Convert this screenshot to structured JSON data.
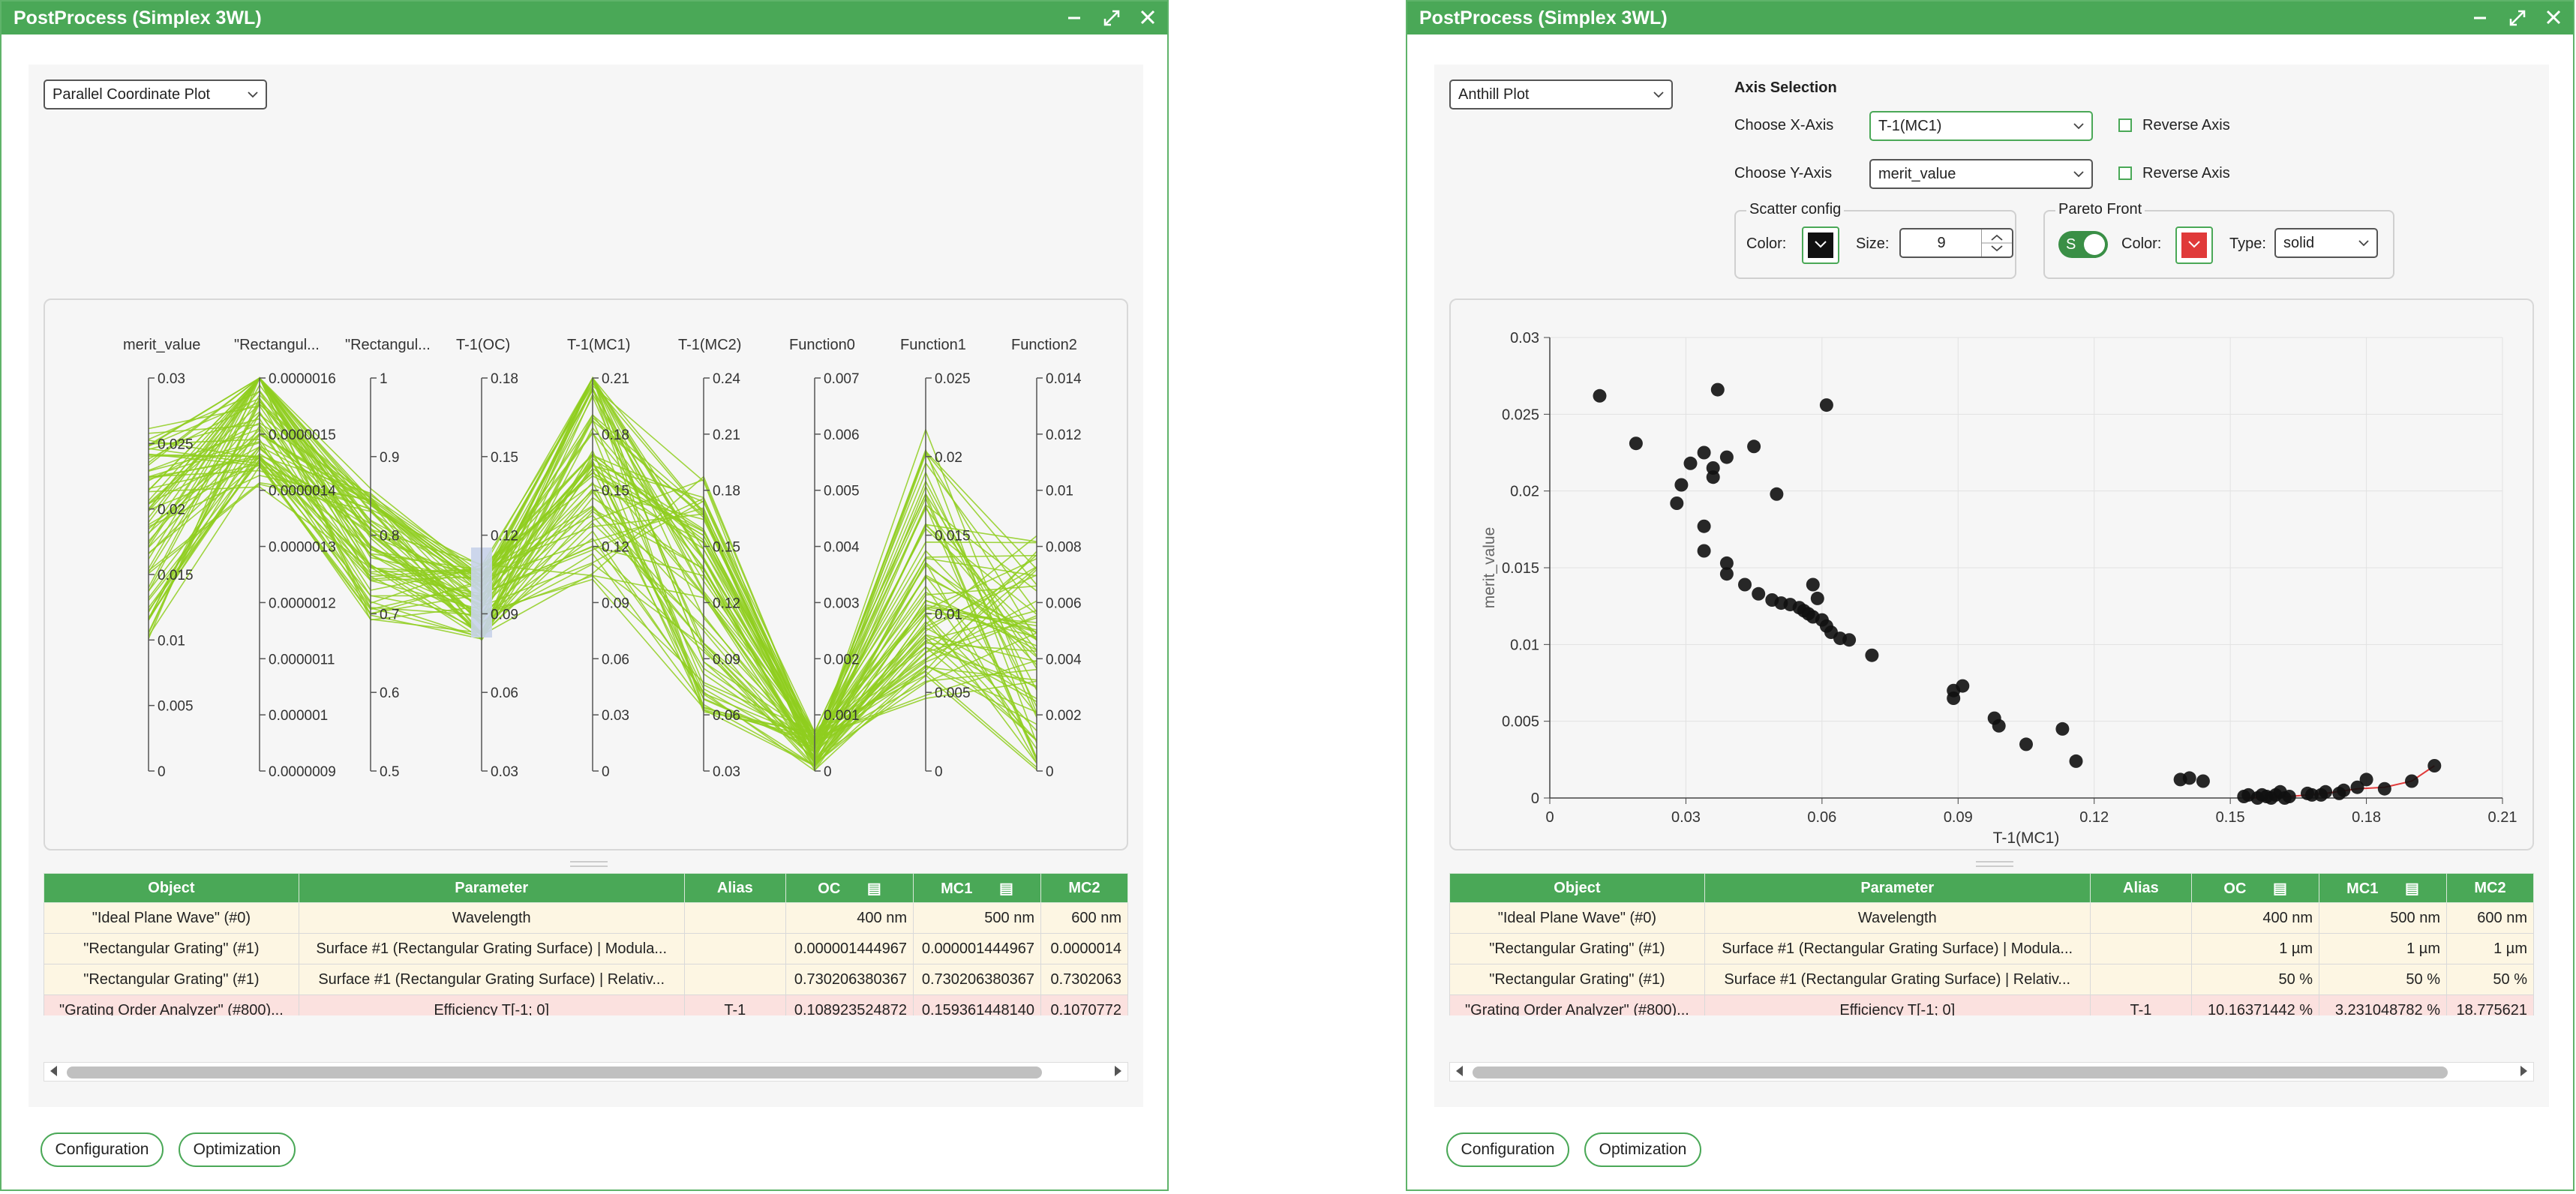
{
  "windows": [
    {
      "title": "PostProcess (Simplex 3WL)",
      "plot_type": "Parallel Coordinate Plot",
      "parallel_axes": [
        {
          "name": "merit_value",
          "ticks": [
            "0.03",
            "0.025",
            "0.02",
            "0.015",
            "0.01",
            "0.005",
            "0"
          ]
        },
        {
          "name": "\"Rectangul...",
          "ticks": [
            "0.0000016",
            "0.0000015",
            "0.0000014",
            "0.0000013",
            "0.0000012",
            "0.0000011",
            "0.000001",
            "0.0000009"
          ]
        },
        {
          "name": "\"Rectangul...",
          "ticks": [
            "1",
            "0.9",
            "0.8",
            "0.7",
            "0.6",
            "0.5"
          ]
        },
        {
          "name": "T-1(OC)",
          "ticks": [
            "0.18",
            "0.15",
            "0.12",
            "0.09",
            "0.06",
            "0.03"
          ]
        },
        {
          "name": "T-1(MC1)",
          "ticks": [
            "0.21",
            "0.18",
            "0.15",
            "0.12",
            "0.09",
            "0.06",
            "0.03",
            "0"
          ]
        },
        {
          "name": "T-1(MC2)",
          "ticks": [
            "0.24",
            "0.21",
            "0.18",
            "0.15",
            "0.12",
            "0.09",
            "0.06",
            "0.03"
          ]
        },
        {
          "name": "Function0",
          "ticks": [
            "0.007",
            "0.006",
            "0.005",
            "0.004",
            "0.003",
            "0.002",
            "0.001",
            "0"
          ]
        },
        {
          "name": "Function1",
          "ticks": [
            "0.025",
            "0.02",
            "0.015",
            "0.01",
            "0.005",
            "0"
          ]
        },
        {
          "name": "Function2",
          "ticks": [
            "0.014",
            "0.012",
            "0.01",
            "0.008",
            "0.006",
            "0.004",
            "0.002",
            "0"
          ]
        }
      ],
      "table": {
        "headers": [
          "Object",
          "Parameter",
          "Alias",
          "OC",
          "MC1",
          "MC2"
        ],
        "rows": [
          [
            "\"Ideal Plane Wave\" (#0)",
            "Wavelength",
            "",
            "400 nm",
            "500 nm",
            "600 nm"
          ],
          [
            "\"Rectangular Grating\" (#1)",
            "Surface #1 (Rectangular Grating Surface) | Modula...",
            "",
            "0.000001444967",
            "0.000001444967",
            "0.0000014"
          ],
          [
            "\"Rectangular Grating\" (#1)",
            "Surface #1 (Rectangular Grating Surface) | Relativ...",
            "",
            "0.730206380367",
            "0.730206380367",
            "0.7302063"
          ],
          [
            "\"Grating Order Analyzer\" (#800)...",
            "Efficiency T[-1; 0]",
            "T-1",
            "0.108923524872",
            "0.159361448140",
            "0.1070772"
          ]
        ]
      },
      "buttons": {
        "configuration": "Configuration",
        "optimization": "Optimization"
      }
    },
    {
      "title": "PostProcess (Simplex 3WL)",
      "plot_type": "Anthill Plot",
      "axis_selection": {
        "heading": "Axis Selection",
        "x_label": "Choose X-Axis",
        "x_value": "T-1(MC1)",
        "y_label": "Choose Y-Axis",
        "y_value": "merit_value",
        "reverse_label": "Reverse Axis"
      },
      "scatter_config": {
        "legend": "Scatter config",
        "color_label": "Color:",
        "size_label": "Size:",
        "size_value": "9",
        "color": "#111111"
      },
      "pareto_front": {
        "legend": "Pareto Front",
        "toggle_text": "S",
        "color_label": "Color:",
        "type_label": "Type:",
        "type_value": "solid",
        "color": "#e03a3a"
      },
      "table": {
        "headers": [
          "Object",
          "Parameter",
          "Alias",
          "OC",
          "MC1",
          "MC2"
        ],
        "rows": [
          [
            "\"Ideal Plane Wave\" (#0)",
            "Wavelength",
            "",
            "400 nm",
            "500 nm",
            "600 nm"
          ],
          [
            "\"Rectangular Grating\" (#1)",
            "Surface #1 (Rectangular Grating Surface) | Modula...",
            "",
            "1 µm",
            "1 µm",
            "1 µm"
          ],
          [
            "\"Rectangular Grating\" (#1)",
            "Surface #1 (Rectangular Grating Surface) | Relativ...",
            "",
            "50 %",
            "50 %",
            "50 %"
          ],
          [
            "\"Grating Order Analyzer\" (#800)...",
            "Efficiency T[-1; 0]",
            "T-1",
            "10.16371442 %",
            "3.231048782 %",
            "18.775621"
          ]
        ]
      },
      "buttons": {
        "configuration": "Configuration",
        "optimization": "Optimization"
      }
    }
  ],
  "chart_data": [
    {
      "type": "scatter",
      "title": "",
      "xlabel": "T-1(MC1)",
      "ylabel": "merit_value",
      "xlim": [
        0,
        0.21
      ],
      "ylim": [
        0,
        0.03
      ],
      "xticks": [
        "0",
        "0.03",
        "0.06",
        "0.09",
        "0.12",
        "0.15",
        "0.18",
        "0.21"
      ],
      "yticks": [
        "0",
        "0.005",
        "0.01",
        "0.015",
        "0.02",
        "0.025",
        "0.03"
      ],
      "grid": true,
      "points": [
        [
          0.011,
          0.0262
        ],
        [
          0.019,
          0.0231
        ],
        [
          0.037,
          0.0266
        ],
        [
          0.061,
          0.0256
        ],
        [
          0.045,
          0.0229
        ],
        [
          0.031,
          0.0218
        ],
        [
          0.034,
          0.0225
        ],
        [
          0.039,
          0.0222
        ],
        [
          0.036,
          0.0215
        ],
        [
          0.029,
          0.0204
        ],
        [
          0.036,
          0.0209
        ],
        [
          0.05,
          0.0198
        ],
        [
          0.028,
          0.0192
        ],
        [
          0.034,
          0.0177
        ],
        [
          0.034,
          0.0161
        ],
        [
          0.039,
          0.0153
        ],
        [
          0.039,
          0.0146
        ],
        [
          0.043,
          0.0139
        ],
        [
          0.046,
          0.0133
        ],
        [
          0.049,
          0.0129
        ],
        [
          0.051,
          0.0127
        ],
        [
          0.053,
          0.0126
        ],
        [
          0.055,
          0.0124
        ],
        [
          0.056,
          0.0122
        ],
        [
          0.057,
          0.012
        ],
        [
          0.058,
          0.0118
        ],
        [
          0.058,
          0.0139
        ],
        [
          0.059,
          0.013
        ],
        [
          0.06,
          0.0116
        ],
        [
          0.061,
          0.0112
        ],
        [
          0.062,
          0.0108
        ],
        [
          0.064,
          0.0104
        ],
        [
          0.066,
          0.0103
        ],
        [
          0.071,
          0.0093
        ],
        [
          0.089,
          0.0065
        ],
        [
          0.089,
          0.007
        ],
        [
          0.091,
          0.0073
        ],
        [
          0.098,
          0.0052
        ],
        [
          0.099,
          0.0047
        ],
        [
          0.105,
          0.0035
        ],
        [
          0.113,
          0.0045
        ],
        [
          0.116,
          0.0024
        ],
        [
          0.139,
          0.0012
        ],
        [
          0.141,
          0.0013
        ],
        [
          0.144,
          0.0011
        ],
        [
          0.153,
          0.0001
        ],
        [
          0.154,
          0.0002
        ],
        [
          0.156,
          0.0
        ],
        [
          0.157,
          0.0002
        ],
        [
          0.158,
          0.0001
        ],
        [
          0.159,
          0.0
        ],
        [
          0.16,
          0.0002
        ],
        [
          0.161,
          0.0004
        ],
        [
          0.162,
          0.0
        ],
        [
          0.163,
          0.0001
        ],
        [
          0.167,
          0.0003
        ],
        [
          0.168,
          0.0002
        ],
        [
          0.17,
          0.0002
        ],
        [
          0.171,
          0.0004
        ],
        [
          0.174,
          0.0003
        ],
        [
          0.175,
          0.0005
        ],
        [
          0.178,
          0.0007
        ],
        [
          0.18,
          0.0012
        ],
        [
          0.184,
          0.0006
        ],
        [
          0.19,
          0.0011
        ],
        [
          0.195,
          0.0021
        ]
      ],
      "pareto_front": [
        [
          0.153,
          0.0
        ],
        [
          0.163,
          0.0001
        ],
        [
          0.171,
          0.0003
        ],
        [
          0.178,
          0.0006
        ],
        [
          0.184,
          0.0007
        ],
        [
          0.19,
          0.0011
        ],
        [
          0.195,
          0.0021
        ]
      ]
    }
  ]
}
